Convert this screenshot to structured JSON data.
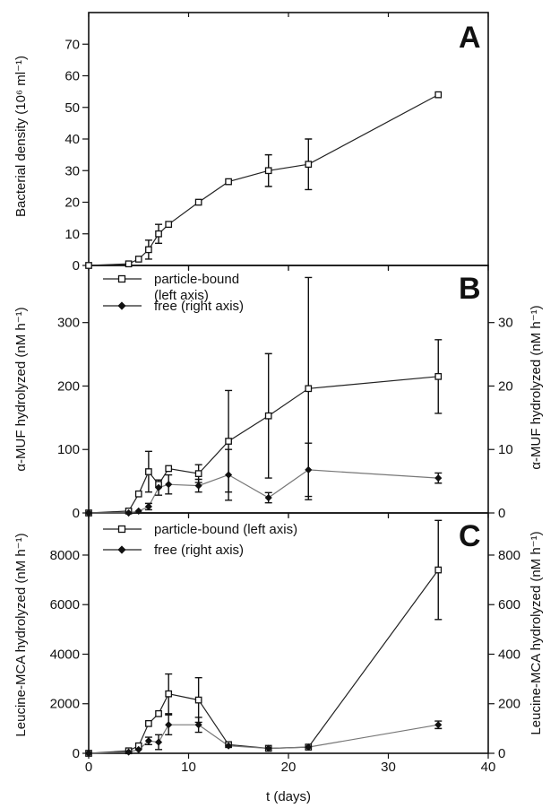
{
  "chart_data": [
    {
      "panel": "A",
      "type": "line",
      "ylabel": "Bacterial density (10⁶ ml⁻¹)",
      "ylim": [
        0,
        80
      ],
      "yticks": [
        0,
        10,
        20,
        30,
        40,
        50,
        60,
        70
      ],
      "xlim": [
        0,
        40
      ],
      "series": [
        {
          "name": "",
          "marker": "square",
          "axis": "left",
          "x": [
            0,
            4,
            5,
            6,
            7,
            8,
            11,
            14,
            18,
            22,
            35
          ],
          "y": [
            0,
            0.5,
            2,
            5,
            10,
            13,
            20,
            26.5,
            30,
            32,
            54
          ],
          "err": [
            0,
            0,
            0,
            3,
            3,
            0,
            0,
            0,
            5,
            8,
            0
          ]
        }
      ]
    },
    {
      "panel": "B",
      "type": "line",
      "ylabel": "α-MUF hydrolyzed (nM h⁻¹)",
      "ylabel_right": "α-MUF hydrolyzed (nM h⁻¹)",
      "ylim": [
        0,
        390
      ],
      "yticks": [
        0,
        100,
        200,
        300
      ],
      "ylim_right": [
        0,
        39
      ],
      "yticks_right": [
        0,
        10,
        20,
        30
      ],
      "xlim": [
        0,
        40
      ],
      "series": [
        {
          "name": "particle-bound (left axis)",
          "marker": "square",
          "axis": "left",
          "x": [
            0,
            4,
            5,
            6,
            7,
            8,
            11,
            14,
            18,
            22,
            35
          ],
          "y": [
            0,
            3,
            30,
            65,
            45,
            70,
            62,
            113,
            153,
            196,
            215
          ],
          "err": [
            0,
            0,
            0,
            32,
            0,
            0,
            14,
            80,
            98,
            175,
            58
          ]
        },
        {
          "name": "free (right axis)",
          "marker": "diamond",
          "axis": "right",
          "x": [
            0,
            4,
            5,
            6,
            7,
            8,
            11,
            14,
            18,
            22,
            35
          ],
          "y": [
            0,
            0,
            0.3,
            1,
            4,
            4.5,
            4.3,
            6,
            2.4,
            6.8,
            5.5
          ],
          "err": [
            0,
            0,
            0,
            0.5,
            1.2,
            1.5,
            1,
            4,
            0.8,
            4.2,
            0.8
          ]
        }
      ]
    },
    {
      "panel": "C",
      "type": "line",
      "xlabel": "t (days)",
      "ylabel": "Leucine-MCA hydrolyzed (nM h⁻¹)",
      "ylabel_right": "Leucine-MCA hydrolyzed (nM h⁻¹)",
      "ylim": [
        0,
        9700
      ],
      "yticks": [
        0,
        2000,
        4000,
        6000,
        8000
      ],
      "ylim_right": [
        0,
        970
      ],
      "yticks_right": [
        0,
        200,
        400,
        600,
        800
      ],
      "xlim": [
        0,
        40
      ],
      "xticks": [
        0,
        10,
        20,
        30,
        40
      ],
      "series": [
        {
          "name": "particle-bound (left axis)",
          "marker": "square",
          "axis": "left",
          "x": [
            0,
            4,
            5,
            6,
            7,
            8,
            11,
            14,
            18,
            22,
            35
          ],
          "y": [
            0,
            100,
            300,
            1200,
            1600,
            2400,
            2150,
            350,
            200,
            250,
            7400
          ],
          "err": [
            0,
            0,
            0,
            0,
            0,
            800,
            900,
            0,
            0,
            0,
            2000
          ]
        },
        {
          "name": "free (right axis)",
          "marker": "diamond",
          "axis": "right",
          "x": [
            0,
            4,
            5,
            6,
            7,
            8,
            11,
            14,
            18,
            22,
            35
          ],
          "y": [
            0,
            5,
            15,
            50,
            45,
            115,
            115,
            30,
            20,
            25,
            115
          ],
          "err": [
            0,
            0,
            0,
            15,
            30,
            40,
            30,
            0,
            0,
            0,
            15
          ]
        }
      ]
    }
  ],
  "legend": {
    "b_particle_line1": "particle-bound",
    "b_particle_line2": "(left axis)",
    "b_free": "free (right axis)",
    "c_particle": "particle-bound (left axis)",
    "c_free": "free (right axis)"
  },
  "panel_letters": {
    "a": "A",
    "b": "B",
    "c": "C"
  },
  "axis_titles": {
    "a_left": "Bacterial density (10⁶ ml⁻¹)",
    "b_left": "α-MUF hydrolyzed (nM h⁻¹)",
    "b_right": "α-MUF hydrolyzed (nM h⁻¹)",
    "c_left": "Leucine-MCA hydrolyzed (nM h⁻¹)",
    "c_right": "Leucine-MCA hydrolyzed (nM h⁻¹)",
    "x": "t (days)"
  }
}
